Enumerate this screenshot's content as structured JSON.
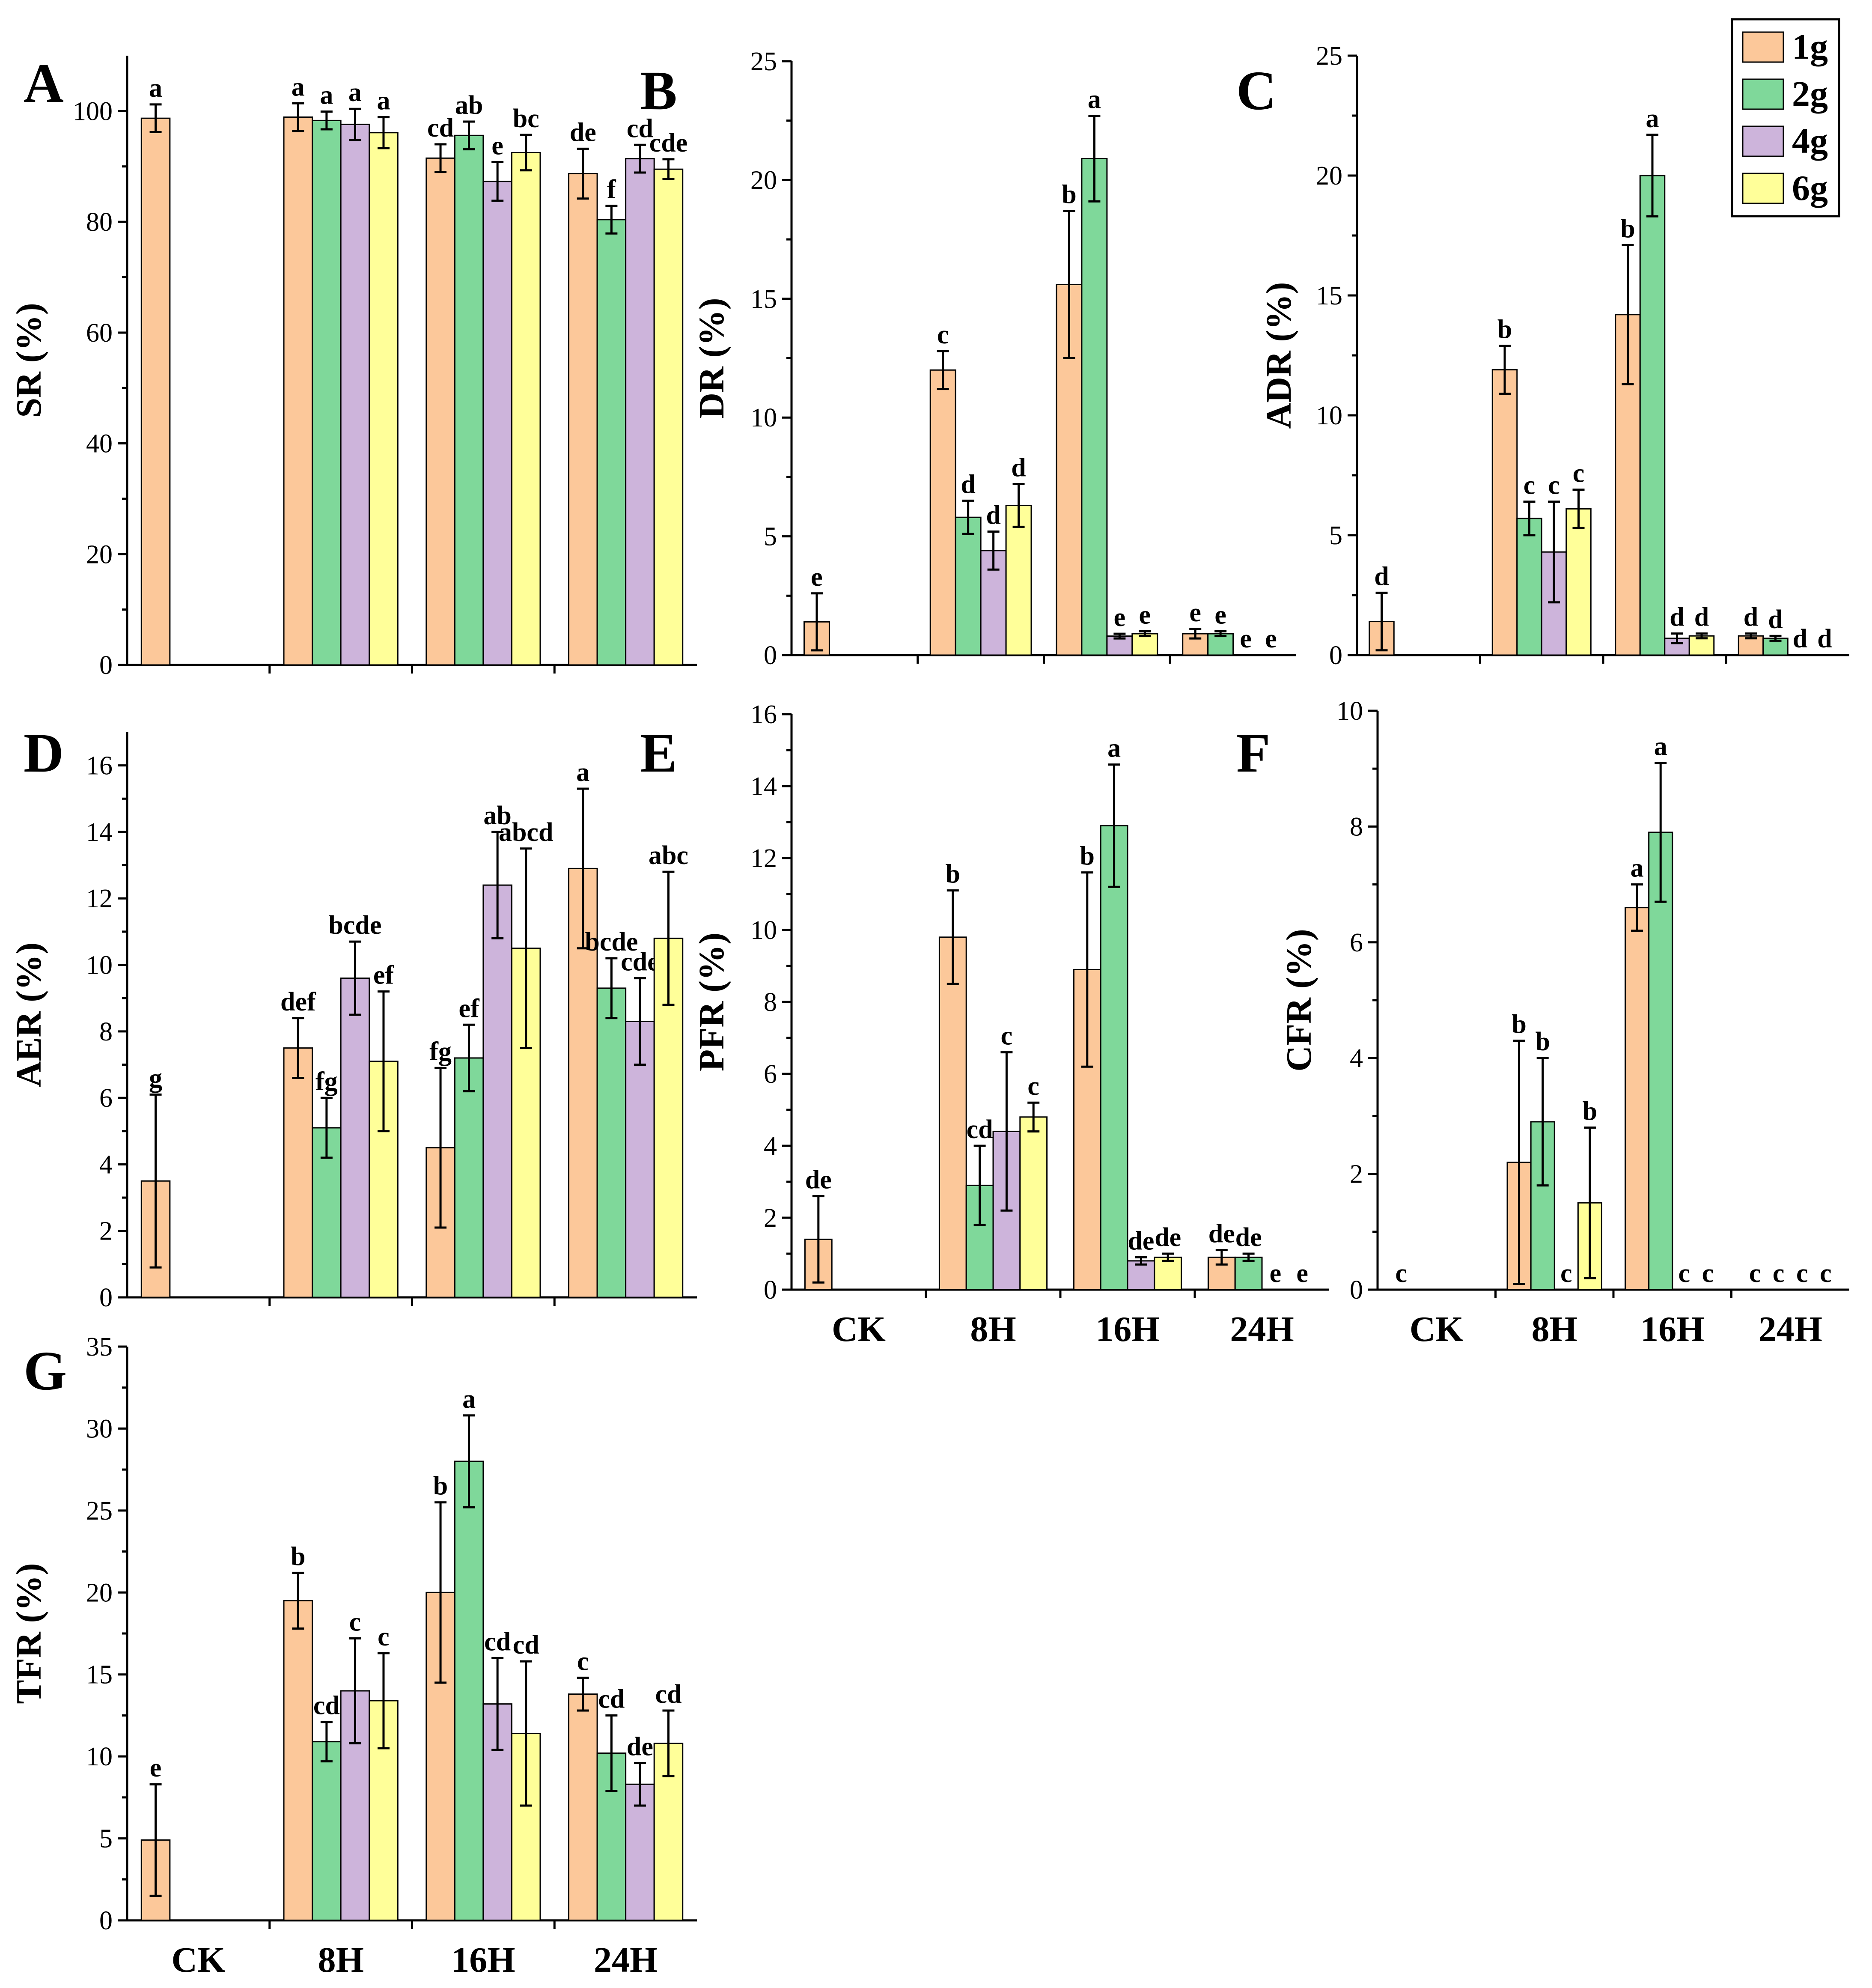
{
  "legend": {
    "items": [
      {
        "label": "1g",
        "color": "#FCC89A"
      },
      {
        "label": "2g",
        "color": "#7FD89A"
      },
      {
        "label": "4g",
        "color": "#CDB4DB"
      },
      {
        "label": "6g",
        "color": "#FFFF99"
      }
    ]
  },
  "chart_data": [
    {
      "panel": "A",
      "type": "bar",
      "ylabel": "SR (%)",
      "ylim": [
        0,
        110
      ],
      "yticks": [
        0,
        20,
        40,
        60,
        80,
        100
      ],
      "categories": [
        "CK",
        "8H",
        "16H",
        "24H"
      ],
      "show_categories": false,
      "series": [
        {
          "name": "1g",
          "values": [
            98.7,
            98.9,
            91.5,
            88.7
          ],
          "errors": [
            2.5,
            2.5,
            2.5,
            4.5
          ],
          "letters": [
            "a",
            "a",
            "cd",
            "de"
          ]
        },
        {
          "name": "2g",
          "values": [
            null,
            98.3,
            95.6,
            80.4
          ],
          "errors": [
            null,
            1.6,
            2.5,
            2.5
          ],
          "letters": [
            null,
            "a",
            "ab",
            "f"
          ]
        },
        {
          "name": "4g",
          "values": [
            null,
            97.6,
            87.3,
            91.4
          ],
          "errors": [
            null,
            2.8,
            3.5,
            2.5
          ],
          "letters": [
            null,
            "a",
            "e",
            "cd"
          ]
        },
        {
          "name": "6g",
          "values": [
            null,
            96.1,
            92.5,
            89.5
          ],
          "errors": [
            null,
            2.8,
            3.2,
            1.8
          ],
          "letters": [
            null,
            "a",
            "bc",
            "cde"
          ]
        }
      ]
    },
    {
      "panel": "B",
      "type": "bar",
      "ylabel": "DR (%)",
      "ylim": [
        0,
        25
      ],
      "yticks": [
        0,
        5,
        10,
        15,
        20,
        25
      ],
      "categories": [
        "CK",
        "8H",
        "16H",
        "24H"
      ],
      "show_categories": false,
      "series": [
        {
          "name": "1g",
          "values": [
            1.4,
            12.0,
            15.6,
            0.9
          ],
          "errors": [
            1.2,
            0.8,
            3.1,
            0.2
          ],
          "letters": [
            "e",
            "c",
            "b",
            "e"
          ]
        },
        {
          "name": "2g",
          "values": [
            null,
            5.8,
            20.9,
            0.9
          ],
          "errors": [
            null,
            0.7,
            1.8,
            0.1
          ],
          "letters": [
            null,
            "d",
            "a",
            "e"
          ]
        },
        {
          "name": "4g",
          "values": [
            null,
            4.4,
            0.8,
            0
          ],
          "errors": [
            null,
            0.8,
            0.1,
            null
          ],
          "letters": [
            null,
            "d",
            "e",
            "e"
          ]
        },
        {
          "name": "6g",
          "values": [
            null,
            6.3,
            0.9,
            0
          ],
          "errors": [
            null,
            0.9,
            0.1,
            null
          ],
          "letters": [
            null,
            "d",
            "e",
            "e"
          ]
        }
      ]
    },
    {
      "panel": "C",
      "type": "bar",
      "ylabel": "ADR (%)",
      "ylim": [
        0,
        25
      ],
      "yticks": [
        0,
        5,
        10,
        15,
        20,
        25
      ],
      "categories": [
        "CK",
        "8H",
        "16H",
        "24H"
      ],
      "show_categories": false,
      "series": [
        {
          "name": "1g",
          "values": [
            1.4,
            11.9,
            14.2,
            0.8
          ],
          "errors": [
            1.2,
            1.0,
            2.9,
            0.1
          ],
          "letters": [
            "d",
            "b",
            "b",
            "d"
          ]
        },
        {
          "name": "2g",
          "values": [
            null,
            5.7,
            20.0,
            0.7
          ],
          "errors": [
            null,
            0.7,
            1.7,
            0.1
          ],
          "letters": [
            null,
            "c",
            "a",
            "d"
          ]
        },
        {
          "name": "4g",
          "values": [
            null,
            4.3,
            0.7,
            0
          ],
          "errors": [
            null,
            2.1,
            0.2,
            null
          ],
          "letters": [
            null,
            "c",
            "d",
            "d"
          ]
        },
        {
          "name": "6g",
          "values": [
            null,
            6.1,
            0.8,
            0
          ],
          "errors": [
            null,
            0.8,
            0.1,
            null
          ],
          "letters": [
            null,
            "c",
            "d",
            "d"
          ]
        }
      ]
    },
    {
      "panel": "D",
      "type": "bar",
      "ylabel": "AER (%)",
      "ylim": [
        0,
        17
      ],
      "yticks": [
        0,
        2,
        4,
        6,
        8,
        10,
        12,
        14,
        16
      ],
      "categories": [
        "CK",
        "8H",
        "16H",
        "24H"
      ],
      "show_categories": false,
      "series": [
        {
          "name": "1g",
          "values": [
            3.5,
            7.5,
            4.5,
            12.9
          ],
          "errors": [
            2.6,
            0.9,
            2.4,
            2.4
          ],
          "letters": [
            "g",
            "def",
            "fg",
            "a"
          ]
        },
        {
          "name": "2g",
          "values": [
            null,
            5.1,
            7.2,
            9.3
          ],
          "errors": [
            null,
            0.9,
            1.0,
            0.9
          ],
          "letters": [
            null,
            "fg",
            "ef",
            "bcde"
          ]
        },
        {
          "name": "4g",
          "values": [
            null,
            9.6,
            12.4,
            8.3
          ],
          "errors": [
            null,
            1.1,
            1.6,
            1.3
          ],
          "letters": [
            null,
            "bcde",
            "ab",
            "cde"
          ]
        },
        {
          "name": "6g",
          "values": [
            null,
            7.1,
            10.5,
            10.8
          ],
          "errors": [
            null,
            2.1,
            3.0,
            2.0
          ],
          "letters": [
            null,
            "ef",
            "abcd",
            "abc"
          ]
        }
      ]
    },
    {
      "panel": "E",
      "type": "bar",
      "ylabel": "PFR (%)",
      "ylim": [
        0,
        16
      ],
      "yticks": [
        0,
        2,
        4,
        6,
        8,
        10,
        12,
        14,
        16
      ],
      "categories": [
        "CK",
        "8H",
        "16H",
        "24H"
      ],
      "show_categories": true,
      "series": [
        {
          "name": "1g",
          "values": [
            1.4,
            9.8,
            8.9,
            0.9
          ],
          "errors": [
            1.2,
            1.3,
            2.7,
            0.2
          ],
          "letters": [
            "de",
            "b",
            "b",
            "de"
          ]
        },
        {
          "name": "2g",
          "values": [
            null,
            2.9,
            12.9,
            0.9
          ],
          "errors": [
            null,
            1.1,
            1.7,
            0.1
          ],
          "letters": [
            null,
            "cd",
            "a",
            "de"
          ]
        },
        {
          "name": "4g",
          "values": [
            null,
            4.4,
            0.8,
            0
          ],
          "errors": [
            null,
            2.2,
            0.1,
            null
          ],
          "letters": [
            null,
            "c",
            "de",
            "e"
          ]
        },
        {
          "name": "6g",
          "values": [
            null,
            4.8,
            0.9,
            0
          ],
          "errors": [
            null,
            0.4,
            0.1,
            null
          ],
          "letters": [
            null,
            "c",
            "de",
            "e"
          ]
        }
      ]
    },
    {
      "panel": "F",
      "type": "bar",
      "ylabel": "CFR (%)",
      "ylim": [
        0,
        10
      ],
      "yticks": [
        0,
        2,
        4,
        6,
        8,
        10
      ],
      "categories": [
        "CK",
        "8H",
        "16H",
        "24H"
      ],
      "show_categories": true,
      "series": [
        {
          "name": "1g",
          "values": [
            0,
            2.2,
            6.6,
            0
          ],
          "errors": [
            null,
            2.1,
            0.4,
            null
          ],
          "letters": [
            "c",
            "b",
            "a",
            "c"
          ]
        },
        {
          "name": "2g",
          "values": [
            null,
            2.9,
            7.9,
            0
          ],
          "errors": [
            null,
            1.1,
            1.2,
            null
          ],
          "letters": [
            null,
            "b",
            "a",
            "c"
          ]
        },
        {
          "name": "4g",
          "values": [
            null,
            0,
            0,
            0
          ],
          "errors": [
            null,
            null,
            null,
            null
          ],
          "letters": [
            null,
            "c",
            "c",
            "c"
          ]
        },
        {
          "name": "6g",
          "values": [
            null,
            1.5,
            0,
            0
          ],
          "errors": [
            null,
            1.3,
            null,
            null
          ],
          "letters": [
            null,
            "b",
            "c",
            "c"
          ]
        }
      ]
    },
    {
      "panel": "G",
      "type": "bar",
      "ylabel": "TFR (%)",
      "ylim": [
        0,
        35
      ],
      "yticks": [
        0,
        5,
        10,
        15,
        20,
        25,
        30,
        35
      ],
      "categories": [
        "CK",
        "8H",
        "16H",
        "24H"
      ],
      "show_categories": true,
      "series": [
        {
          "name": "1g",
          "values": [
            4.9,
            19.5,
            20.0,
            13.8
          ],
          "errors": [
            3.4,
            1.7,
            5.5,
            1.0
          ],
          "letters": [
            "e",
            "b",
            "b",
            "c"
          ]
        },
        {
          "name": "2g",
          "values": [
            null,
            10.9,
            28.0,
            10.2
          ],
          "errors": [
            null,
            1.2,
            2.8,
            2.3
          ],
          "letters": [
            null,
            "cd",
            "a",
            "cd"
          ]
        },
        {
          "name": "4g",
          "values": [
            null,
            14.0,
            13.2,
            8.3
          ],
          "errors": [
            null,
            3.2,
            2.8,
            1.3
          ],
          "letters": [
            null,
            "c",
            "cd",
            "de"
          ]
        },
        {
          "name": "6g",
          "values": [
            null,
            13.4,
            11.4,
            10.8
          ],
          "errors": [
            null,
            2.9,
            4.4,
            2.0
          ],
          "letters": [
            null,
            "c",
            "cd",
            "cd"
          ]
        }
      ]
    }
  ]
}
